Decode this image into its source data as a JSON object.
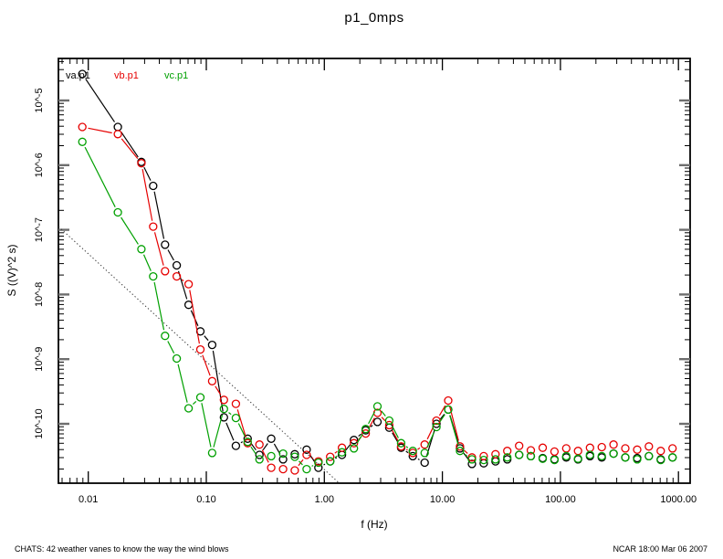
{
  "title": "p1_0mps",
  "legend": [
    {
      "label": "va.p1",
      "color": "#000000"
    },
    {
      "label": "vb.p1",
      "color": "#e60000"
    },
    {
      "label": "vc.p1",
      "color": "#00a000"
    }
  ],
  "footer": {
    "left": "CHATS: 42 weather vanes to know the way the wind blows",
    "right": "NCAR 18:00 Mar 06 2007"
  },
  "chart_data": {
    "type": "line",
    "title": "p1_0mps",
    "x_axis": {
      "label": "f (Hz)",
      "scale": "log",
      "tick_values": [
        0.01,
        0.1,
        1,
        10,
        100,
        1000
      ],
      "tick_labels": [
        "0.01",
        "0.10",
        "1.00",
        "10.00",
        "100.00",
        "1000.00"
      ],
      "range": [
        0.0056,
        1250
      ]
    },
    "y_axis": {
      "label": "S ((V)^2 s)",
      "scale": "log",
      "tick_log10": [
        -5,
        -6,
        -7,
        -8,
        -9,
        -10
      ],
      "tick_labels": [
        "10^-5",
        "10^-6",
        "10^-7",
        "10^-8",
        "10^-9",
        "10^-10"
      ],
      "range_log10": [
        -10.92,
        -4.35
      ]
    },
    "marker": "open-circle",
    "line_type": "points-with-line-gaps",
    "x": [
      0.0089,
      0.0178,
      0.0282,
      0.0355,
      0.0447,
      0.0562,
      0.0708,
      0.0891,
      0.112,
      0.141,
      0.178,
      0.224,
      0.282,
      0.355,
      0.447,
      0.562,
      0.708,
      0.891,
      1.12,
      1.41,
      1.78,
      2.24,
      2.82,
      3.55,
      4.47,
      5.62,
      7.08,
      8.91,
      11.2,
      14.1,
      17.8,
      22.4,
      28.2,
      35.5,
      44.7,
      56.2,
      70.8,
      89.1,
      112,
      141,
      178,
      224,
      282,
      355,
      447,
      562,
      708,
      891
    ],
    "series": [
      {
        "name": "va.p1",
        "color": "#000000",
        "log10_S": [
          -4.59,
          -5.41,
          -5.95,
          -6.32,
          -7.23,
          -7.55,
          -8.16,
          -8.57,
          -8.78,
          -9.9,
          -10.34,
          -10.23,
          -10.48,
          -10.23,
          -10.55,
          -10.47,
          -10.4,
          -10.68,
          -10.58,
          -10.48,
          -10.25,
          -10.1,
          -9.97,
          -10.06,
          -10.37,
          -10.5,
          -10.6,
          -10.0,
          -9.78,
          -10.38,
          -10.62,
          -10.61,
          -10.58,
          -10.55,
          -10.48,
          -10.5,
          -10.53,
          -10.55,
          -10.52,
          -10.55,
          -10.5,
          -10.52,
          -10.46,
          -10.52,
          -10.53,
          -10.5,
          -10.55,
          -10.52
        ]
      },
      {
        "name": "vb.p1",
        "color": "#e60000",
        "log10_S": [
          -5.41,
          -5.52,
          -5.97,
          -6.95,
          -7.64,
          -7.72,
          -7.84,
          -8.85,
          -9.34,
          -9.63,
          -9.69,
          -10.3,
          -10.32,
          -10.68,
          -10.7,
          -10.72,
          -10.48,
          -10.58,
          -10.51,
          -10.37,
          -10.3,
          -10.15,
          -9.83,
          -10.02,
          -10.35,
          -10.45,
          -10.32,
          -9.95,
          -9.64,
          -10.35,
          -10.52,
          -10.5,
          -10.47,
          -10.42,
          -10.34,
          -10.41,
          -10.37,
          -10.43,
          -10.38,
          -10.42,
          -10.37,
          -10.36,
          -10.32,
          -10.38,
          -10.4,
          -10.35,
          -10.42,
          -10.38
        ]
      },
      {
        "name": "vc.p1",
        "color": "#00a000",
        "log10_S": [
          -5.64,
          -6.73,
          -7.3,
          -7.72,
          -8.64,
          -8.99,
          -9.76,
          -9.59,
          -10.45,
          -9.77,
          -9.91,
          -10.28,
          -10.55,
          -10.5,
          -10.46,
          -10.51,
          -10.7,
          -10.6,
          -10.58,
          -10.44,
          -10.38,
          -10.08,
          -9.73,
          -9.95,
          -10.3,
          -10.42,
          -10.45,
          -10.05,
          -9.78,
          -10.42,
          -10.55,
          -10.56,
          -10.55,
          -10.52,
          -10.48,
          -10.5,
          -10.54,
          -10.56,
          -10.5,
          -10.54,
          -10.48,
          -10.5,
          -10.46,
          -10.52,
          -10.55,
          -10.5,
          -10.56,
          -10.52
        ]
      }
    ],
    "reference_line": {
      "style": "dotted",
      "color": "#333333",
      "slope_loglog": -1.67,
      "from": {
        "f": 0.0056,
        "log10_S": -6.95
      },
      "to": {
        "f": 1.34,
        "log10_S": -10.92
      }
    },
    "grid": "off",
    "legend_position": "top-left-inside"
  }
}
